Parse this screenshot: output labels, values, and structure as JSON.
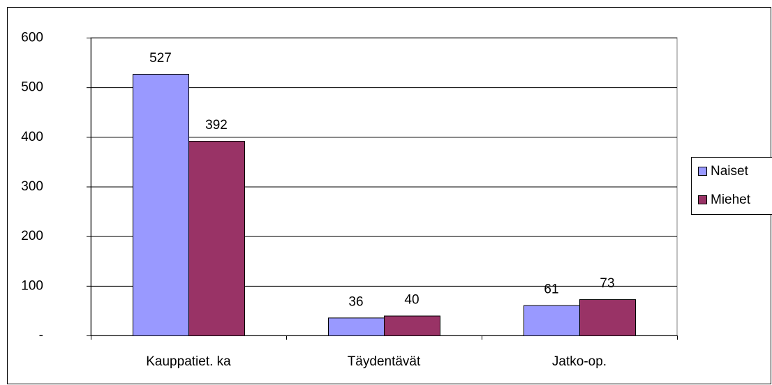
{
  "chart_data": {
    "type": "bar",
    "categories": [
      "Kauppatiet. ka",
      "Täydentävät",
      "Jatko-op."
    ],
    "series": [
      {
        "name": "Naiset",
        "color": "#9999ff",
        "values": [
          527,
          36,
          61
        ]
      },
      {
        "name": "Miehet",
        "color": "#993366",
        "values": [
          392,
          40,
          73
        ]
      }
    ],
    "ylim": [
      0,
      600
    ],
    "yticks": [
      {
        "value": 0,
        "label": "-"
      },
      100,
      200,
      300,
      400,
      500,
      600
    ],
    "grid": true,
    "legend": "right"
  }
}
